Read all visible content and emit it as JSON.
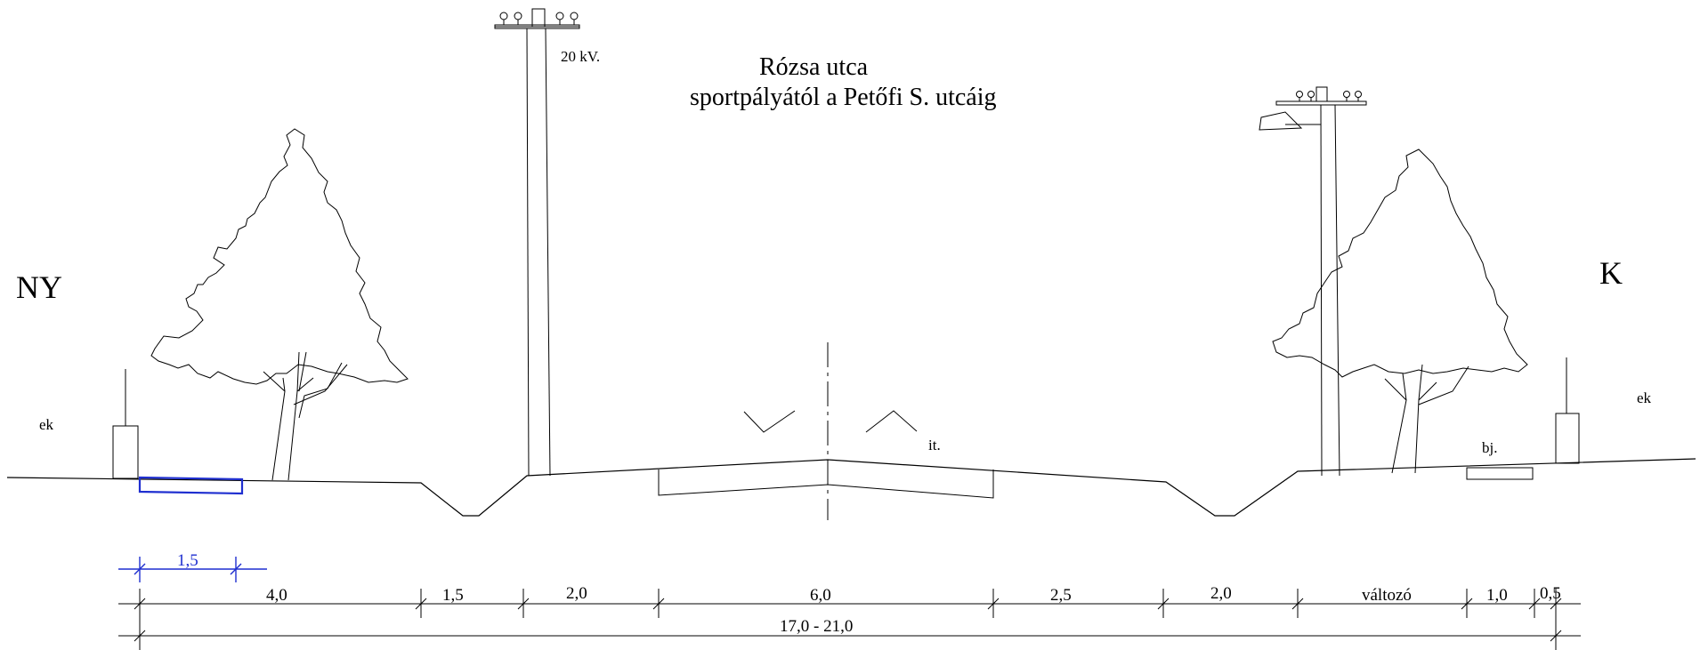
{
  "title": {
    "line1": "Rózsa  utca",
    "line2": "sportpályától a Petőfi S. utcáig"
  },
  "directions": {
    "west": "NY",
    "east": "K"
  },
  "labels": {
    "power_line": "20 kV.",
    "ek_left": "ek",
    "ek_right": "ek",
    "it": "it.",
    "bj": "bj."
  },
  "dimensions": {
    "blue_dim": "1,5",
    "segments": [
      "4,0",
      "1,5",
      "2,0",
      "6,0",
      "2,5",
      "2,0",
      "változó",
      "1,0",
      "0,5"
    ],
    "total": "17,0 - 21,0"
  },
  "colors": {
    "line": "#000000",
    "highlight": "#1f2fd0"
  }
}
